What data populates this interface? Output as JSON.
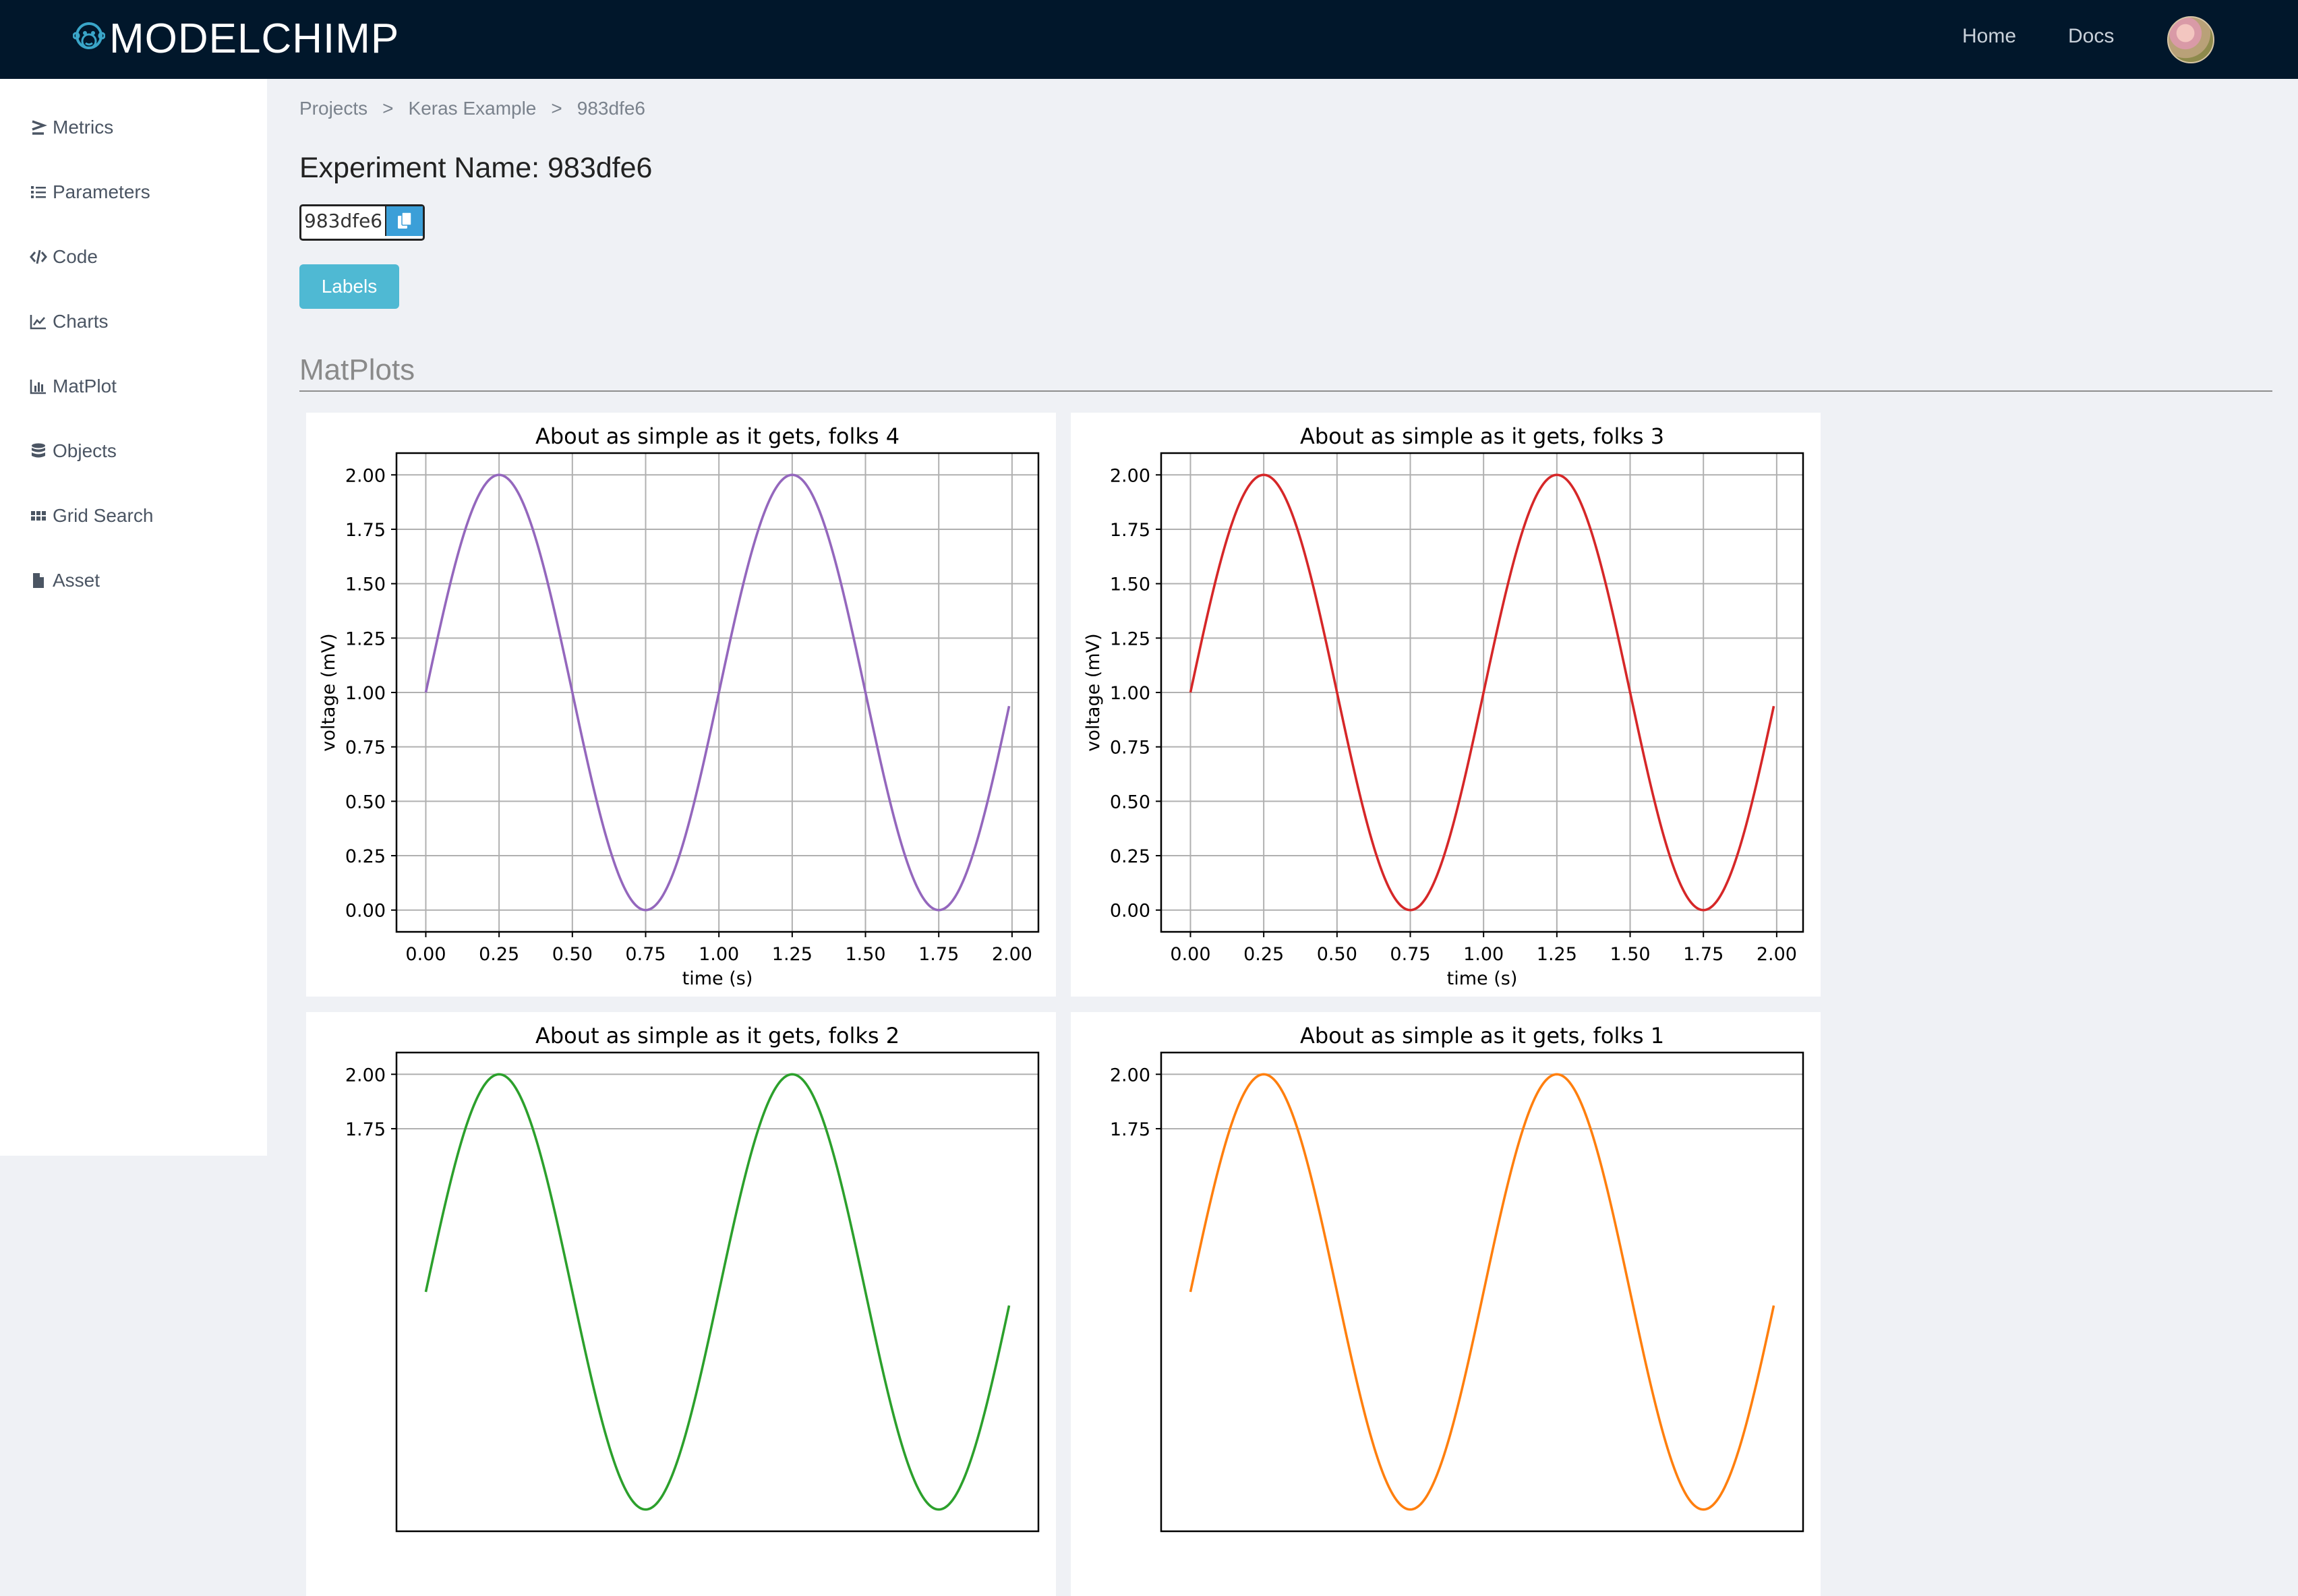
{
  "header": {
    "brand": "MODELCHIMP",
    "nav": {
      "home": "Home",
      "docs": "Docs"
    }
  },
  "sidebar": {
    "items": [
      {
        "label": "Metrics",
        "icon": "greater-equal-icon"
      },
      {
        "label": "Parameters",
        "icon": "list-icon"
      },
      {
        "label": "Code",
        "icon": "code-icon"
      },
      {
        "label": "Charts",
        "icon": "line-chart-icon"
      },
      {
        "label": "MatPlot",
        "icon": "bar-chart-icon"
      },
      {
        "label": "Objects",
        "icon": "database-icon"
      },
      {
        "label": "Grid Search",
        "icon": "grid-icon"
      },
      {
        "label": "Asset",
        "icon": "file-icon"
      }
    ]
  },
  "breadcrumb": {
    "items": [
      "Projects",
      "Keras Example",
      "983dfe6"
    ],
    "separator": ">"
  },
  "experiment": {
    "title": "Experiment Name: 983dfe6",
    "id": "983dfe6",
    "copy_icon": "copy-icon"
  },
  "labels_button": "Labels",
  "section_title": "MatPlots",
  "chart_data": [
    {
      "type": "line",
      "title": "About as simple as it gets, folks 4",
      "xlabel": "time (s)",
      "ylabel": "voltage (mV)",
      "color": "#9467bd",
      "function": "1 + sin(2*pi*t)",
      "x": [
        0.0,
        0.25,
        0.5,
        0.75,
        1.0,
        1.25,
        1.5,
        1.75,
        1.99
      ],
      "values": [
        1.0,
        2.0,
        1.0,
        0.0,
        1.0,
        2.0,
        1.0,
        0.0,
        0.94
      ],
      "xlim": [
        -0.1,
        2.09
      ],
      "ylim": [
        -0.1,
        2.1
      ],
      "xticks": [
        "0.00",
        "0.25",
        "0.50",
        "0.75",
        "1.00",
        "1.25",
        "1.50",
        "1.75",
        "2.00"
      ],
      "yticks": [
        "0.00",
        "0.25",
        "0.50",
        "0.75",
        "1.00",
        "1.25",
        "1.50",
        "1.75",
        "2.00"
      ],
      "grid": true
    },
    {
      "type": "line",
      "title": "About as simple as it gets, folks 3",
      "xlabel": "time (s)",
      "ylabel": "voltage (mV)",
      "color": "#d62728",
      "function": "1 + sin(2*pi*t)",
      "x": [
        0.0,
        0.25,
        0.5,
        0.75,
        1.0,
        1.25,
        1.5,
        1.75,
        1.99
      ],
      "values": [
        1.0,
        2.0,
        1.0,
        0.0,
        1.0,
        2.0,
        1.0,
        0.0,
        0.94
      ],
      "xlim": [
        -0.1,
        2.09
      ],
      "ylim": [
        -0.1,
        2.1
      ],
      "xticks": [
        "0.00",
        "0.25",
        "0.50",
        "0.75",
        "1.00",
        "1.25",
        "1.50",
        "1.75",
        "2.00"
      ],
      "yticks": [
        "0.00",
        "0.25",
        "0.50",
        "0.75",
        "1.00",
        "1.25",
        "1.50",
        "1.75",
        "2.00"
      ],
      "grid": true
    },
    {
      "type": "line",
      "title": "About as simple as it gets, folks 2",
      "xlabel": "",
      "ylabel": "",
      "color": "#2ca02c",
      "function": "1 + sin(2*pi*t)",
      "x": [
        0.0,
        0.25,
        0.5,
        0.75,
        1.0,
        1.25,
        1.5,
        1.75,
        1.99
      ],
      "values": [
        1.0,
        2.0,
        1.0,
        0.0,
        1.0,
        2.0,
        1.0,
        0.0,
        0.94
      ],
      "xlim": [
        -0.1,
        2.09
      ],
      "ylim": [
        -0.1,
        2.1
      ],
      "xticks": [],
      "yticks": [
        "1.75",
        "2.00"
      ],
      "grid": true
    },
    {
      "type": "line",
      "title": "About as simple as it gets, folks 1",
      "xlabel": "",
      "ylabel": "",
      "color": "#ff7f0e",
      "function": "1 + sin(2*pi*t)",
      "x": [
        0.0,
        0.25,
        0.5,
        0.75,
        1.0,
        1.25,
        1.5,
        1.75,
        1.99
      ],
      "values": [
        1.0,
        2.0,
        1.0,
        0.0,
        1.0,
        2.0,
        1.0,
        0.0,
        0.94
      ],
      "xlim": [
        -0.1,
        2.09
      ],
      "ylim": [
        -0.1,
        2.1
      ],
      "xticks": [],
      "yticks": [
        "1.75",
        "2.00"
      ],
      "grid": true
    }
  ]
}
